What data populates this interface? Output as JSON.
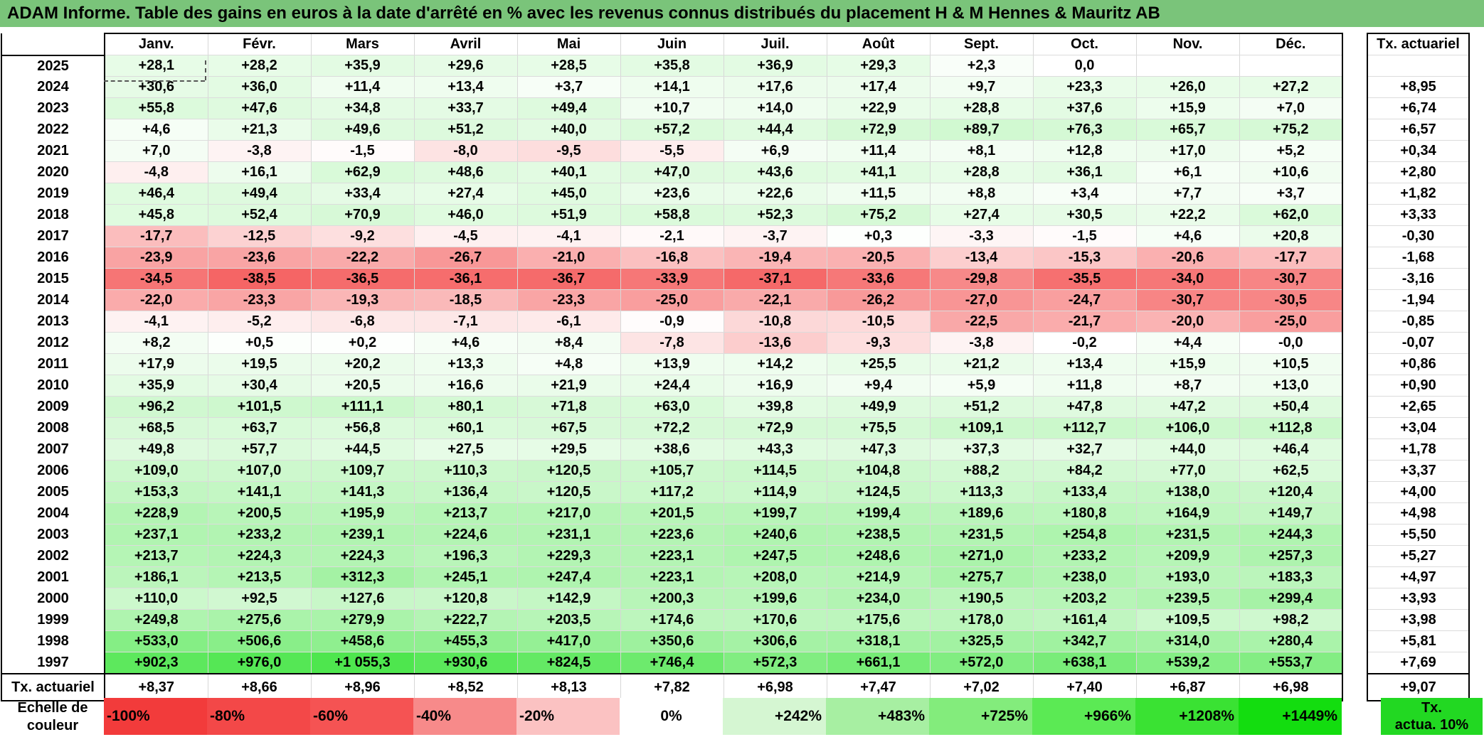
{
  "title": "ADAM Informe. Table des gains en euros à la date d'arrêté en % avec les revenus connus distribués du placement H & M Hennes & Mauritz AB",
  "months": [
    "Janv.",
    "Févr.",
    "Mars",
    "Avril",
    "Mai",
    "Juin",
    "Juil.",
    "Août",
    "Sept.",
    "Oct.",
    "Nov.",
    "Déc."
  ],
  "tx_header": "Tx. actuariel",
  "rows": [
    {
      "year": "2025",
      "values": [
        "+28,1",
        "+28,2",
        "+35,9",
        "+29,6",
        "+28,5",
        "+35,8",
        "+36,9",
        "+29,3",
        "+2,3",
        "0,0",
        "",
        ""
      ],
      "tx": ""
    },
    {
      "year": "2024",
      "values": [
        "+30,6",
        "+36,0",
        "+11,4",
        "+13,4",
        "+3,7",
        "+14,1",
        "+17,6",
        "+17,4",
        "+9,7",
        "+23,3",
        "+26,0",
        "+27,2"
      ],
      "tx": "+8,95"
    },
    {
      "year": "2023",
      "values": [
        "+55,8",
        "+47,6",
        "+34,8",
        "+33,7",
        "+49,4",
        "+10,7",
        "+14,0",
        "+22,9",
        "+28,8",
        "+37,6",
        "+15,9",
        "+7,0"
      ],
      "tx": "+6,74"
    },
    {
      "year": "2022",
      "values": [
        "+4,6",
        "+21,3",
        "+49,6",
        "+51,2",
        "+40,0",
        "+57,2",
        "+44,4",
        "+72,9",
        "+89,7",
        "+76,3",
        "+65,7",
        "+75,2"
      ],
      "tx": "+6,57"
    },
    {
      "year": "2021",
      "values": [
        "+7,0",
        "-3,8",
        "-1,5",
        "-8,0",
        "-9,5",
        "-5,5",
        "+6,9",
        "+11,4",
        "+8,1",
        "+12,8",
        "+17,0",
        "+5,2"
      ],
      "tx": "+0,34"
    },
    {
      "year": "2020",
      "values": [
        "-4,8",
        "+16,1",
        "+62,9",
        "+48,6",
        "+40,1",
        "+47,0",
        "+43,6",
        "+41,1",
        "+28,8",
        "+36,1",
        "+6,1",
        "+10,6"
      ],
      "tx": "+2,80"
    },
    {
      "year": "2019",
      "values": [
        "+46,4",
        "+49,4",
        "+33,4",
        "+27,4",
        "+45,0",
        "+23,6",
        "+22,6",
        "+11,5",
        "+8,8",
        "+3,4",
        "+7,7",
        "+3,7"
      ],
      "tx": "+1,82"
    },
    {
      "year": "2018",
      "values": [
        "+45,8",
        "+52,4",
        "+70,9",
        "+46,0",
        "+51,9",
        "+58,8",
        "+52,3",
        "+75,2",
        "+27,4",
        "+30,5",
        "+22,2",
        "+62,0"
      ],
      "tx": "+3,33"
    },
    {
      "year": "2017",
      "values": [
        "-17,7",
        "-12,5",
        "-9,2",
        "-4,5",
        "-4,1",
        "-2,1",
        "-3,7",
        "+0,3",
        "-3,3",
        "-1,5",
        "+4,6",
        "+20,8"
      ],
      "tx": "-0,30"
    },
    {
      "year": "2016",
      "values": [
        "-23,9",
        "-23,6",
        "-22,2",
        "-26,7",
        "-21,0",
        "-16,8",
        "-19,4",
        "-20,5",
        "-13,4",
        "-15,3",
        "-20,6",
        "-17,7"
      ],
      "tx": "-1,68"
    },
    {
      "year": "2015",
      "values": [
        "-34,5",
        "-38,5",
        "-36,5",
        "-36,1",
        "-36,7",
        "-33,9",
        "-37,1",
        "-33,6",
        "-29,8",
        "-35,5",
        "-34,0",
        "-30,7"
      ],
      "tx": "-3,16"
    },
    {
      "year": "2014",
      "values": [
        "-22,0",
        "-23,3",
        "-19,3",
        "-18,5",
        "-23,3",
        "-25,0",
        "-22,1",
        "-26,2",
        "-27,0",
        "-24,7",
        "-30,7",
        "-30,5"
      ],
      "tx": "-1,94"
    },
    {
      "year": "2013",
      "values": [
        "-4,1",
        "-5,2",
        "-6,8",
        "-7,1",
        "-6,1",
        "-0,9",
        "-10,8",
        "-10,5",
        "-22,5",
        "-21,7",
        "-20,0",
        "-25,0"
      ],
      "tx": "-0,85"
    },
    {
      "year": "2012",
      "values": [
        "+8,2",
        "+0,5",
        "+0,2",
        "+4,6",
        "+8,4",
        "-7,8",
        "-13,6",
        "-9,3",
        "-3,8",
        "-0,2",
        "+4,4",
        "-0,0"
      ],
      "tx": "-0,07"
    },
    {
      "year": "2011",
      "values": [
        "+17,9",
        "+19,5",
        "+20,2",
        "+13,3",
        "+4,8",
        "+13,9",
        "+14,2",
        "+25,5",
        "+21,2",
        "+13,4",
        "+15,9",
        "+10,5"
      ],
      "tx": "+0,86"
    },
    {
      "year": "2010",
      "values": [
        "+35,9",
        "+30,4",
        "+20,5",
        "+16,6",
        "+21,9",
        "+24,4",
        "+16,9",
        "+9,4",
        "+5,9",
        "+11,8",
        "+8,7",
        "+13,0"
      ],
      "tx": "+0,90"
    },
    {
      "year": "2009",
      "values": [
        "+96,2",
        "+101,5",
        "+111,1",
        "+80,1",
        "+71,8",
        "+63,0",
        "+39,8",
        "+49,9",
        "+51,2",
        "+47,8",
        "+47,2",
        "+50,4"
      ],
      "tx": "+2,65"
    },
    {
      "year": "2008",
      "values": [
        "+68,5",
        "+63,7",
        "+56,8",
        "+60,1",
        "+67,5",
        "+72,2",
        "+72,9",
        "+75,5",
        "+109,1",
        "+112,7",
        "+106,0",
        "+112,8"
      ],
      "tx": "+3,04"
    },
    {
      "year": "2007",
      "values": [
        "+49,8",
        "+57,7",
        "+44,5",
        "+27,5",
        "+29,5",
        "+38,6",
        "+43,3",
        "+47,3",
        "+37,3",
        "+32,7",
        "+44,0",
        "+46,4"
      ],
      "tx": "+1,78"
    },
    {
      "year": "2006",
      "values": [
        "+109,0",
        "+107,0",
        "+109,7",
        "+110,3",
        "+120,5",
        "+105,7",
        "+114,5",
        "+104,8",
        "+88,2",
        "+84,2",
        "+77,0",
        "+62,5"
      ],
      "tx": "+3,37"
    },
    {
      "year": "2005",
      "values": [
        "+153,3",
        "+141,1",
        "+141,3",
        "+136,4",
        "+120,5",
        "+117,2",
        "+114,9",
        "+124,5",
        "+113,3",
        "+133,4",
        "+138,0",
        "+120,4"
      ],
      "tx": "+4,00"
    },
    {
      "year": "2004",
      "values": [
        "+228,9",
        "+200,5",
        "+195,9",
        "+213,7",
        "+217,0",
        "+201,5",
        "+199,7",
        "+199,4",
        "+189,6",
        "+180,8",
        "+164,9",
        "+149,7"
      ],
      "tx": "+4,98"
    },
    {
      "year": "2003",
      "values": [
        "+237,1",
        "+233,2",
        "+239,1",
        "+224,6",
        "+231,1",
        "+223,6",
        "+240,6",
        "+238,5",
        "+231,5",
        "+254,8",
        "+231,5",
        "+244,3"
      ],
      "tx": "+5,50"
    },
    {
      "year": "2002",
      "values": [
        "+213,7",
        "+224,3",
        "+224,3",
        "+196,3",
        "+229,3",
        "+223,1",
        "+247,5",
        "+248,6",
        "+271,0",
        "+233,2",
        "+209,9",
        "+257,3"
      ],
      "tx": "+5,27"
    },
    {
      "year": "2001",
      "values": [
        "+186,1",
        "+213,5",
        "+312,3",
        "+245,1",
        "+247,4",
        "+223,1",
        "+208,0",
        "+214,9",
        "+275,7",
        "+238,0",
        "+193,0",
        "+183,3"
      ],
      "tx": "+4,97"
    },
    {
      "year": "2000",
      "values": [
        "+110,0",
        "+92,5",
        "+127,6",
        "+120,8",
        "+142,9",
        "+200,3",
        "+199,6",
        "+234,0",
        "+190,5",
        "+203,2",
        "+239,5",
        "+299,4"
      ],
      "tx": "+3,93"
    },
    {
      "year": "1999",
      "values": [
        "+249,8",
        "+275,6",
        "+279,9",
        "+222,7",
        "+203,5",
        "+174,6",
        "+170,6",
        "+175,6",
        "+178,0",
        "+161,4",
        "+109,5",
        "+98,2"
      ],
      "tx": "+3,98"
    },
    {
      "year": "1998",
      "values": [
        "+533,0",
        "+506,6",
        "+458,6",
        "+455,3",
        "+417,0",
        "+350,6",
        "+306,6",
        "+318,1",
        "+325,5",
        "+342,7",
        "+314,0",
        "+280,4"
      ],
      "tx": "+5,81"
    },
    {
      "year": "1997",
      "values": [
        "+902,3",
        "+976,0",
        "+1 055,3",
        "+930,6",
        "+824,5",
        "+746,4",
        "+572,3",
        "+661,1",
        "+572,0",
        "+638,1",
        "+539,2",
        "+553,7"
      ],
      "tx": "+7,69"
    }
  ],
  "footer": {
    "label": "Tx. actuariel",
    "values": [
      "+8,37",
      "+8,66",
      "+8,96",
      "+8,52",
      "+8,13",
      "+7,82",
      "+6,98",
      "+7,47",
      "+7,02",
      "+7,40",
      "+6,87",
      "+6,98"
    ],
    "total": "+9,07"
  },
  "scale": {
    "label_line1": "Echelle de",
    "label_line2": "couleur",
    "cells": [
      {
        "label": "-100%",
        "color": "#f23b3b"
      },
      {
        "label": "-80%",
        "color": "#f34848"
      },
      {
        "label": "-60%",
        "color": "#f55353"
      },
      {
        "label": "-40%",
        "color": "#f78a8a"
      },
      {
        "label": "-20%",
        "color": "#fbc2c2"
      },
      {
        "label": "0%",
        "color": "#ffffff"
      },
      {
        "label": "+242%",
        "color": "#d5f6d2"
      },
      {
        "label": "+483%",
        "color": "#a7efa2"
      },
      {
        "label": "+725%",
        "color": "#83ec7c"
      },
      {
        "label": "+966%",
        "color": "#5bea54"
      },
      {
        "label": "+1208%",
        "color": "#3ae233"
      },
      {
        "label": "+1449%",
        "color": "#13dd0f"
      }
    ],
    "tx_note_line1": "Tx.",
    "tx_note_line2": "actua. 10%",
    "tx_note_color": "#22d822"
  }
}
